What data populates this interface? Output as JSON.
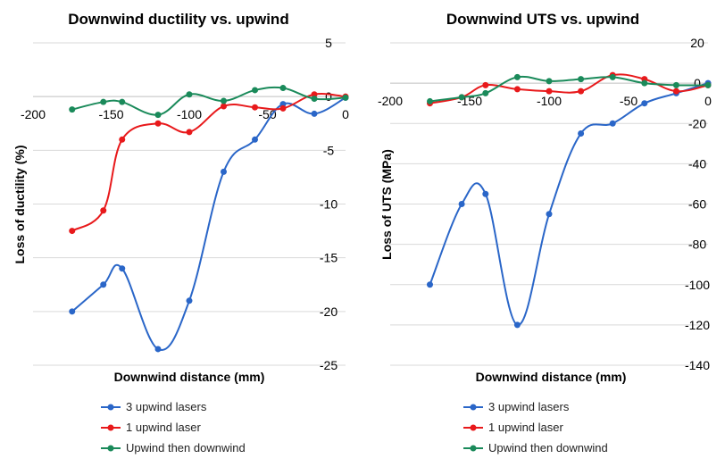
{
  "chart_data": [
    {
      "type": "line",
      "title": "Downwind ductility vs. upwind",
      "xlabel": "Downwind distance (mm)",
      "ylabel": "Loss of ductility  (%)",
      "xlim": [
        -200,
        0
      ],
      "ylim": [
        -25,
        5
      ],
      "xticks": [
        -200,
        -150,
        -100,
        -50,
        0
      ],
      "yticks": [
        5,
        0,
        -5,
        -10,
        -15,
        -20,
        -25
      ],
      "grid": "horizontal",
      "legend": "bottom",
      "series": [
        {
          "name": "3 upwind lasers",
          "color": "#2a66c8",
          "x": [
            -175,
            -155,
            -143,
            -120,
            -100,
            -78,
            -58,
            -40,
            -20,
            0
          ],
          "y": [
            -20,
            -17.5,
            -16,
            -23.5,
            -19,
            -7,
            -4,
            -0.7,
            -1.6,
            -0.1
          ]
        },
        {
          "name": "1 upwind laser",
          "color": "#e8191b",
          "x": [
            -175,
            -155,
            -143,
            -120,
            -100,
            -78,
            -58,
            -40,
            -20,
            0
          ],
          "y": [
            -12.5,
            -10.6,
            -4,
            -2.5,
            -3.3,
            -0.9,
            -1,
            -1.1,
            0.2,
            0
          ]
        },
        {
          "name": "Upwind then downwind",
          "color": "#1a8a5a",
          "x": [
            -175,
            -155,
            -143,
            -120,
            -100,
            -78,
            -58,
            -40,
            -20,
            0
          ],
          "y": [
            -1.2,
            -0.5,
            -0.5,
            -1.7,
            0.2,
            -0.4,
            0.6,
            0.8,
            -0.2,
            -0.1
          ]
        }
      ]
    },
    {
      "type": "line",
      "title": "Downwind UTS vs. upwind",
      "xlabel": "Downwind distance (mm)",
      "ylabel": "Loss of UTS (MPa)",
      "xlim": [
        -200,
        0
      ],
      "ylim": [
        -140,
        20
      ],
      "xticks": [
        -200,
        -150,
        -100,
        -50,
        0
      ],
      "yticks": [
        20,
        0,
        -20,
        -40,
        -60,
        -80,
        -100,
        -120,
        -140
      ],
      "grid": "horizontal",
      "legend": "bottom",
      "series": [
        {
          "name": "3 upwind lasers",
          "color": "#2a66c8",
          "x": [
            -175,
            -155,
            -140,
            -120,
            -100,
            -80,
            -60,
            -40,
            -20,
            0
          ],
          "y": [
            -100,
            -60,
            -55,
            -120,
            -65,
            -25,
            -20,
            -10,
            -5,
            0
          ]
        },
        {
          "name": "1 upwind laser",
          "color": "#e8191b",
          "x": [
            -175,
            -155,
            -140,
            -120,
            -100,
            -80,
            -60,
            -40,
            -20,
            0
          ],
          "y": [
            -10,
            -7,
            -1,
            -3,
            -4,
            -4,
            4,
            2,
            -4,
            -1
          ]
        },
        {
          "name": "Upwind then downwind",
          "color": "#1a8a5a",
          "x": [
            -175,
            -155,
            -140,
            -120,
            -100,
            -80,
            -60,
            -40,
            -20,
            0
          ],
          "y": [
            -9,
            -7,
            -5,
            3,
            1,
            2,
            3,
            0,
            -1,
            -1
          ]
        }
      ]
    }
  ]
}
